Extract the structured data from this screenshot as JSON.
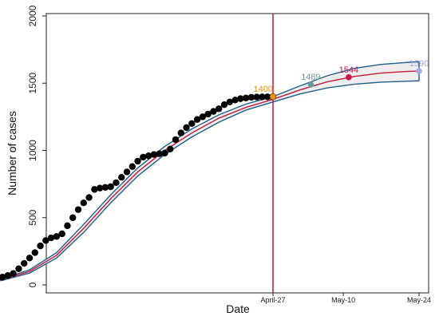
{
  "chart_data": {
    "type": "scatter",
    "title": "",
    "xlabel": "Date",
    "ylabel": "Number of cases",
    "ylim": [
      0,
      2000
    ],
    "yticks": [
      0,
      500,
      1000,
      1500,
      2000
    ],
    "xlim_days": [
      -63,
      30
    ],
    "xticks": [
      {
        "label": "April-27",
        "day": 0
      },
      {
        "label": "May-10",
        "day": 13
      },
      {
        "label": "May-24",
        "day": 27
      }
    ],
    "grid": false,
    "legend": "none",
    "vline_day": 0,
    "observed": {
      "days": [
        -61,
        -60,
        -59,
        -58,
        -57,
        -56,
        -55,
        -54,
        -53,
        -52,
        -51,
        -50,
        -49,
        -48,
        -47,
        -46,
        -45,
        -44,
        -43,
        -42,
        -41,
        -40,
        -39,
        -38,
        -37,
        -36,
        -35,
        -34,
        -33,
        -32,
        -31,
        -30,
        -29,
        -28,
        -27,
        -26,
        -25,
        -24,
        -23,
        -22,
        -21,
        -20,
        -19,
        -18,
        -17,
        -16,
        -15,
        -14,
        -13,
        -12,
        -11,
        -10,
        -9,
        -8,
        -7,
        -6,
        -5,
        -4,
        -3,
        -2,
        -1,
        0
      ],
      "values": [
        2,
        4,
        6,
        9,
        12,
        16,
        20,
        26,
        33,
        40,
        48,
        58,
        70,
        85,
        120,
        160,
        200,
        240,
        290,
        330,
        350,
        360,
        380,
        440,
        500,
        560,
        610,
        650,
        710,
        720,
        725,
        730,
        760,
        800,
        840,
        880,
        920,
        950,
        960,
        970,
        975,
        980,
        1010,
        1080,
        1130,
        1170,
        1200,
        1230,
        1250,
        1270,
        1290,
        1310,
        1340,
        1360,
        1375,
        1385,
        1390,
        1395,
        1397,
        1398,
        1399,
        1400
      ]
    },
    "fit": {
      "days": [
        -63,
        -60,
        -55,
        -50,
        -45,
        -40,
        -35,
        -30,
        -25,
        -20,
        -15,
        -10,
        -5,
        0,
        5,
        10,
        15,
        20,
        25,
        27
      ],
      "values": [
        0,
        5,
        15,
        40,
        100,
        220,
        420,
        640,
        840,
        1000,
        1130,
        1240,
        1320,
        1380,
        1450,
        1510,
        1550,
        1575,
        1588,
        1590
      ],
      "upper": [
        0,
        6,
        18,
        46,
        112,
        240,
        450,
        670,
        870,
        1030,
        1160,
        1265,
        1345,
        1400,
        1480,
        1555,
        1610,
        1640,
        1655,
        1660
      ],
      "lower": [
        0,
        4,
        12,
        34,
        88,
        200,
        390,
        610,
        810,
        970,
        1100,
        1210,
        1300,
        1360,
        1420,
        1465,
        1492,
        1508,
        1515,
        1517
      ]
    },
    "callouts": [
      {
        "label": "1400",
        "day": 0,
        "value": 1400,
        "color": "#f0900a"
      },
      {
        "label": "1489",
        "day": 7,
        "value": 1489,
        "color": "#6f9a9a"
      },
      {
        "label": "1544",
        "day": 14,
        "value": 1544,
        "color": "#d0104b"
      },
      {
        "label": "1590",
        "day": 27,
        "value": 1590,
        "color": "#a9a7e0"
      }
    ],
    "colors": {
      "points": "#000000",
      "fit": "#c41a3c",
      "band": "#1f5f8b",
      "band_fill": "#eeeeee",
      "vline": "#c41a3c"
    }
  }
}
